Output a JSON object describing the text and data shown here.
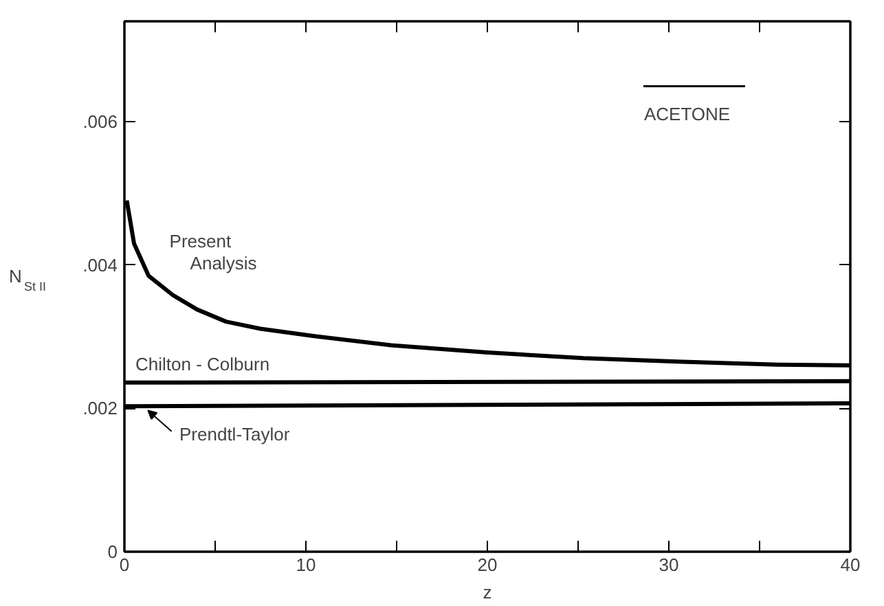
{
  "chart_data": {
    "type": "line",
    "xlabel": "z",
    "ylabel": "N$_{St II}$",
    "xlim": [
      0,
      40
    ],
    "ylim": [
      0,
      0.0074
    ],
    "xticks": [
      0,
      {
        "value": 5,
        "label": null
      },
      10,
      {
        "value": 15,
        "label": null
      },
      20,
      {
        "value": 25,
        "label": null
      },
      30,
      {
        "value": 35,
        "label": null
      },
      40
    ],
    "yticks": [
      0,
      {
        "value": 0.002,
        "label": ".002"
      },
      {
        "value": 0.004,
        "label": ".004"
      },
      {
        "value": 0.006,
        "label": ".006"
      }
    ],
    "grid": false,
    "marker": "none",
    "line_style": "solid",
    "annotations": [
      "ACETONE"
    ],
    "series": [
      {
        "name": "Present Analysis",
        "color": "#000000",
        "x": [
          0.13,
          0.53,
          1.33,
          2.67,
          4,
          5.6,
          7.5,
          10.4,
          14.7,
          20,
          25.3,
          30.7,
          36,
          40
        ],
        "values": [
          0.0049,
          0.0043,
          0.00385,
          0.00358,
          0.00338,
          0.00321,
          0.00311,
          0.00301,
          0.00288,
          0.00278,
          0.0027,
          0.00265,
          0.00261,
          0.0026
        ]
      },
      {
        "name": "Chilton - Colburn",
        "color": "#000000",
        "x": [
          0,
          40
        ],
        "values": [
          0.00236,
          0.00238
        ]
      },
      {
        "name": "Prendtl-Taylor",
        "color": "#000000",
        "x": [
          0,
          40
        ],
        "values": [
          0.00203,
          0.00207
        ]
      }
    ]
  }
}
